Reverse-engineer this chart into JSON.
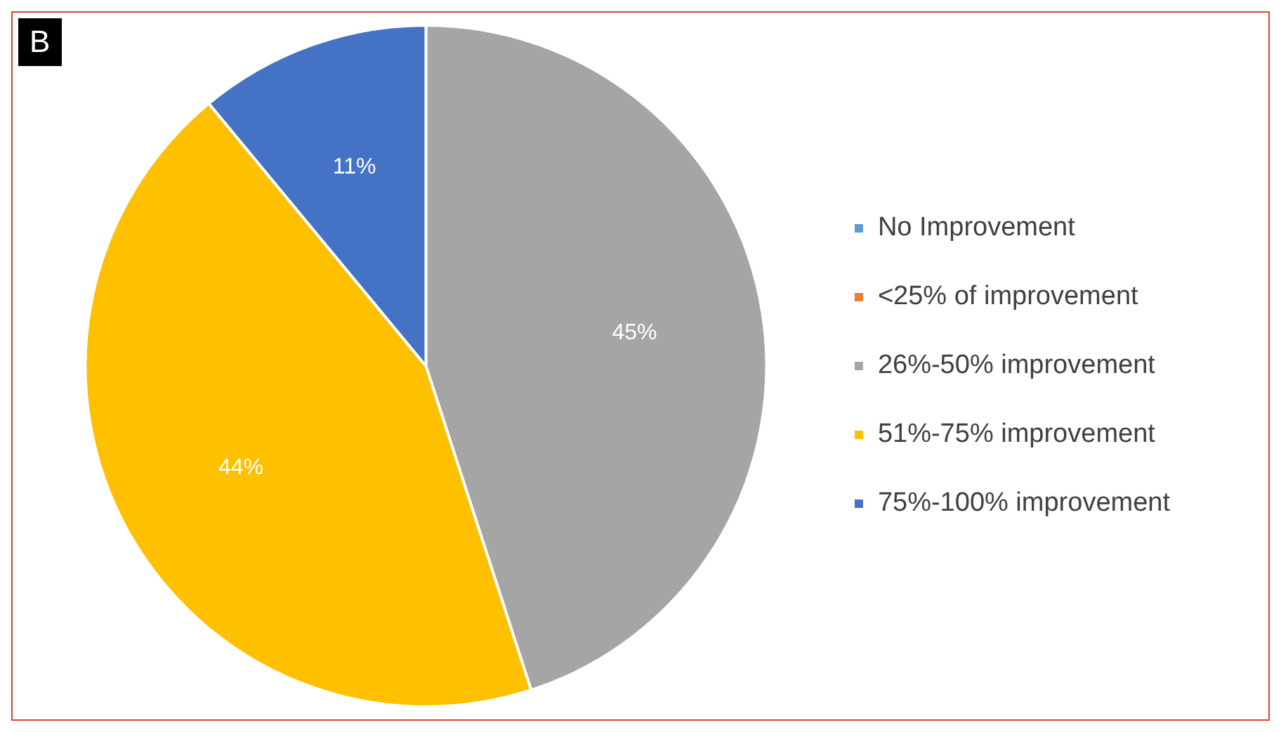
{
  "chart_data": {
    "type": "pie",
    "annotations": [
      "B"
    ],
    "categories": [
      "No Improvement",
      "<25% of improvement",
      "26%-50% improvement",
      "51%-75% improvement",
      "75%-100% improvement"
    ],
    "values": [
      0,
      0,
      45,
      44,
      11
    ],
    "colors": [
      "#5b9bd5",
      "#ed7d31",
      "#a5a5a5",
      "#ffc000",
      "#4472c4"
    ],
    "value_labels": [
      null,
      null,
      "45%",
      "44%",
      "11%"
    ],
    "legend": "right"
  }
}
